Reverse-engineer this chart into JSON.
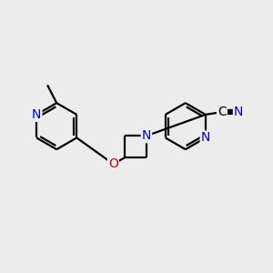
{
  "bg_color": "#ececec",
  "bond_color": "#000000",
  "bond_width": 1.6,
  "atom_colors": {
    "N": "#0000cc",
    "O": "#cc0000",
    "C": "#000000"
  },
  "font_size": 10,
  "figsize": [
    3.0,
    3.0
  ],
  "dpi": 100,
  "xlim": [
    0.0,
    5.2
  ],
  "ylim": [
    0.5,
    4.2
  ]
}
